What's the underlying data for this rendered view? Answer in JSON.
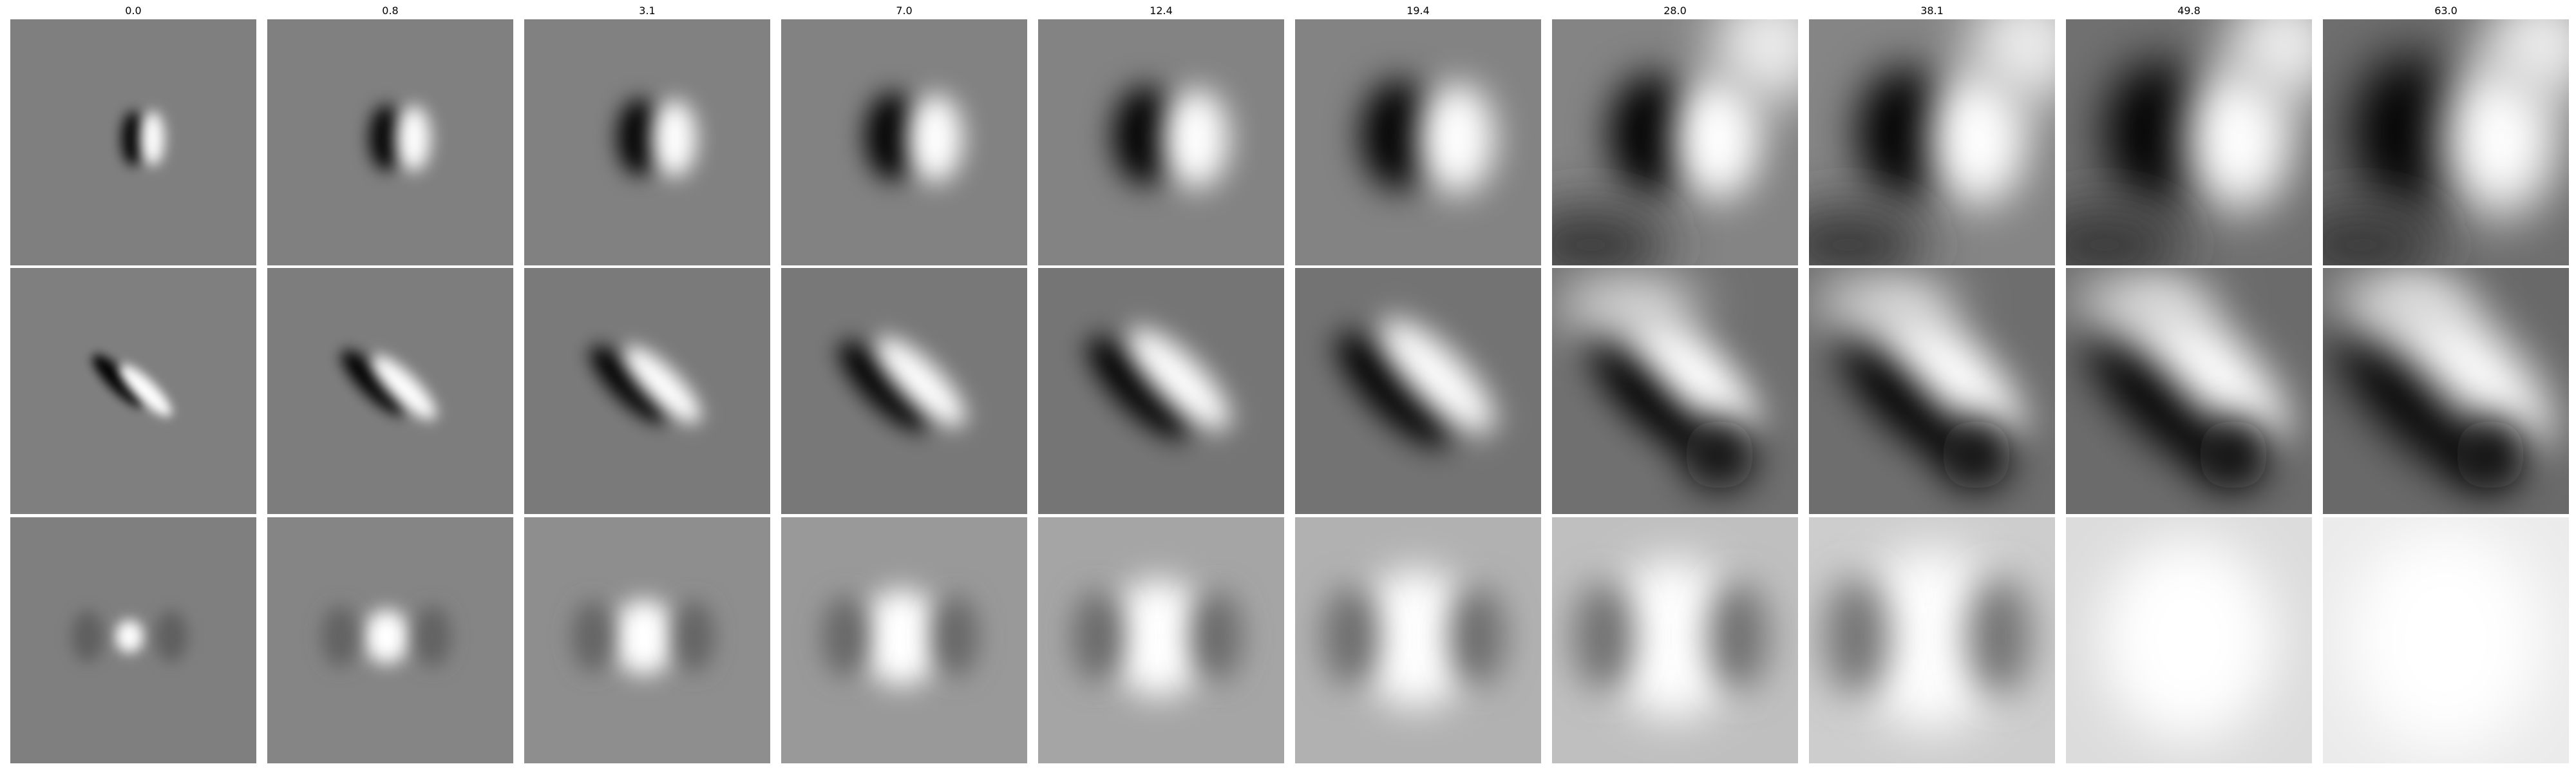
{
  "column_labels": [
    "0.0",
    "0.8",
    "3.1",
    "7.0",
    "12.4",
    "19.4",
    "28.0",
    "38.1",
    "49.8",
    "63.0"
  ],
  "row_count": 3,
  "colormap": "grayscale",
  "background_color": "#ffffff",
  "neutral_gray": "#7f7f7f"
}
